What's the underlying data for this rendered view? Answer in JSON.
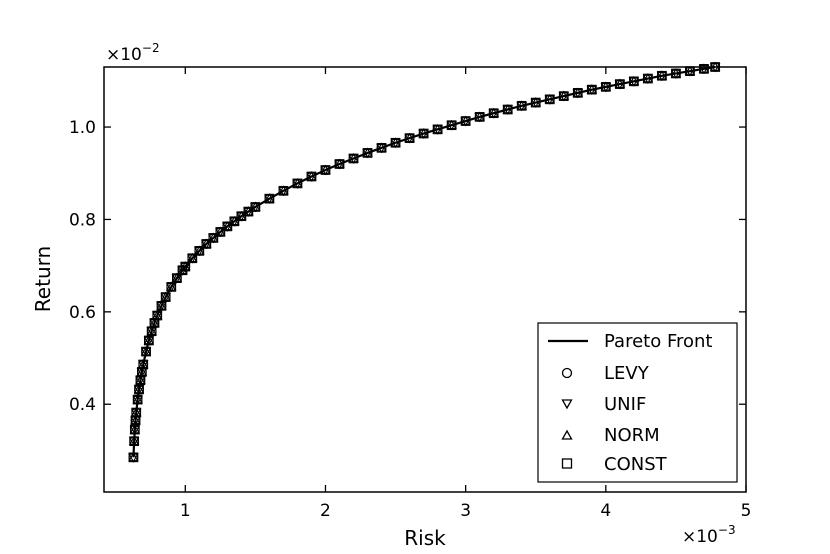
{
  "chart_data": {
    "type": "line",
    "xlabel": "Risk",
    "ylabel": "Return",
    "x_multiplier": {
      "base": "×10",
      "exp": "−3"
    },
    "y_multiplier": {
      "base": "×10",
      "exp": "−2"
    },
    "xlim": [
      0.42,
      5.0
    ],
    "ylim": [
      0.21,
      1.13
    ],
    "x_ticks": [
      1,
      2,
      3,
      4,
      5
    ],
    "x_tick_labels": [
      "1",
      "2",
      "3",
      "4",
      "5"
    ],
    "y_ticks": [
      0.4,
      0.6,
      0.8,
      1.0
    ],
    "y_tick_labels": [
      "0.4",
      "0.6",
      "0.8",
      "1.0"
    ],
    "grid": false,
    "legend_position": "lower-right",
    "x": [
      0.63,
      0.635,
      0.64,
      0.645,
      0.65,
      0.66,
      0.67,
      0.68,
      0.69,
      0.7,
      0.72,
      0.74,
      0.76,
      0.78,
      0.8,
      0.83,
      0.86,
      0.9,
      0.94,
      0.98,
      1.0,
      1.05,
      1.1,
      1.15,
      1.2,
      1.25,
      1.3,
      1.35,
      1.4,
      1.45,
      1.5,
      1.6,
      1.7,
      1.8,
      1.9,
      2.0,
      2.1,
      2.2,
      2.3,
      2.4,
      2.5,
      2.6,
      2.7,
      2.8,
      2.9,
      3.0,
      3.1,
      3.2,
      3.3,
      3.4,
      3.5,
      3.6,
      3.7,
      3.8,
      3.9,
      4.0,
      4.1,
      4.2,
      4.3,
      4.4,
      4.5,
      4.6,
      4.7,
      4.78
    ],
    "series": [
      {
        "name": "Pareto Front",
        "style": "line",
        "y": [
          0.285,
          0.32,
          0.345,
          0.365,
          0.382,
          0.41,
          0.432,
          0.452,
          0.47,
          0.486,
          0.514,
          0.538,
          0.558,
          0.576,
          0.592,
          0.613,
          0.632,
          0.654,
          0.673,
          0.69,
          0.698,
          0.716,
          0.732,
          0.747,
          0.76,
          0.773,
          0.785,
          0.796,
          0.807,
          0.817,
          0.827,
          0.845,
          0.862,
          0.878,
          0.893,
          0.907,
          0.92,
          0.932,
          0.944,
          0.955,
          0.966,
          0.976,
          0.986,
          0.995,
          1.004,
          1.013,
          1.022,
          1.03,
          1.038,
          1.046,
          1.053,
          1.06,
          1.067,
          1.074,
          1.081,
          1.087,
          1.093,
          1.099,
          1.105,
          1.111,
          1.116,
          1.121,
          1.126,
          1.13
        ]
      },
      {
        "name": "LEVY",
        "marker": "circle"
      },
      {
        "name": "UNIF",
        "marker": "triangle-down"
      },
      {
        "name": "NORM",
        "marker": "triangle-up"
      },
      {
        "name": "CONST",
        "marker": "square"
      }
    ],
    "colors": {
      "line": "#000000",
      "marker": "#000000",
      "background": "#ffffff"
    }
  }
}
